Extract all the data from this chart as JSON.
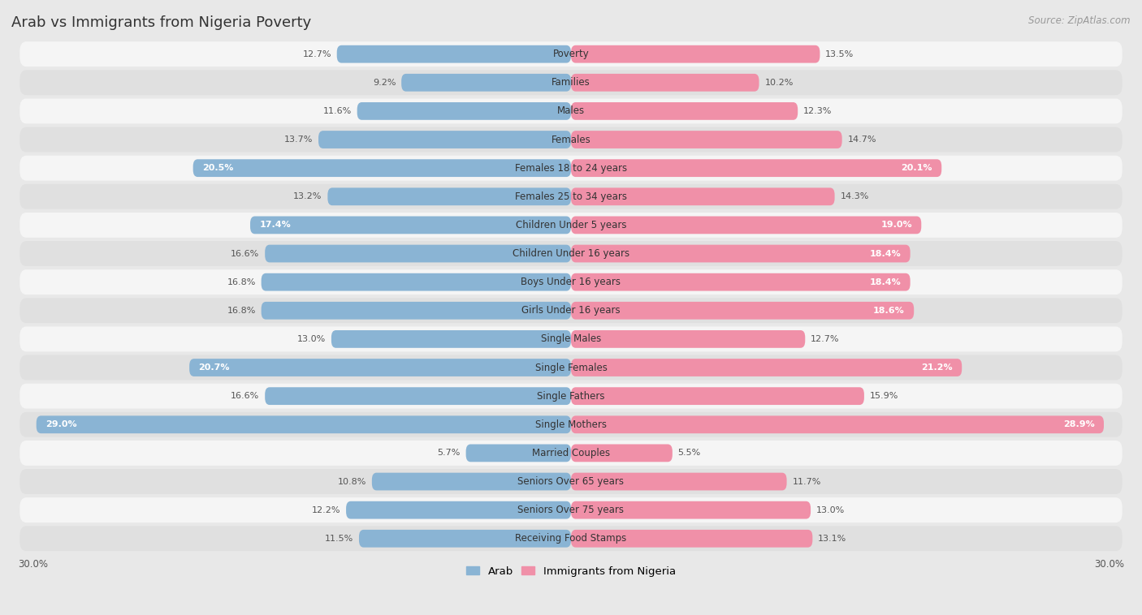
{
  "title": "Arab vs Immigrants from Nigeria Poverty",
  "source": "Source: ZipAtlas.com",
  "categories": [
    "Poverty",
    "Families",
    "Males",
    "Females",
    "Females 18 to 24 years",
    "Females 25 to 34 years",
    "Children Under 5 years",
    "Children Under 16 years",
    "Boys Under 16 years",
    "Girls Under 16 years",
    "Single Males",
    "Single Females",
    "Single Fathers",
    "Single Mothers",
    "Married Couples",
    "Seniors Over 65 years",
    "Seniors Over 75 years",
    "Receiving Food Stamps"
  ],
  "arab_values": [
    12.7,
    9.2,
    11.6,
    13.7,
    20.5,
    13.2,
    17.4,
    16.6,
    16.8,
    16.8,
    13.0,
    20.7,
    16.6,
    29.0,
    5.7,
    10.8,
    12.2,
    11.5
  ],
  "nigeria_values": [
    13.5,
    10.2,
    12.3,
    14.7,
    20.1,
    14.3,
    19.0,
    18.4,
    18.4,
    18.6,
    12.7,
    21.2,
    15.9,
    28.9,
    5.5,
    11.7,
    13.0,
    13.1
  ],
  "arab_color": "#8ab4d4",
  "nigeria_color": "#f090a8",
  "arab_label": "Arab",
  "nigeria_label": "Immigrants from Nigeria",
  "background_color": "#e8e8e8",
  "row_light": "#f5f5f5",
  "row_dark": "#e0e0e0",
  "xlim": 30.0,
  "bar_height": 0.62,
  "title_fontsize": 13,
  "label_fontsize": 8.5,
  "value_fontsize": 8.0,
  "source_fontsize": 8.5,
  "inside_threshold": 17.0
}
